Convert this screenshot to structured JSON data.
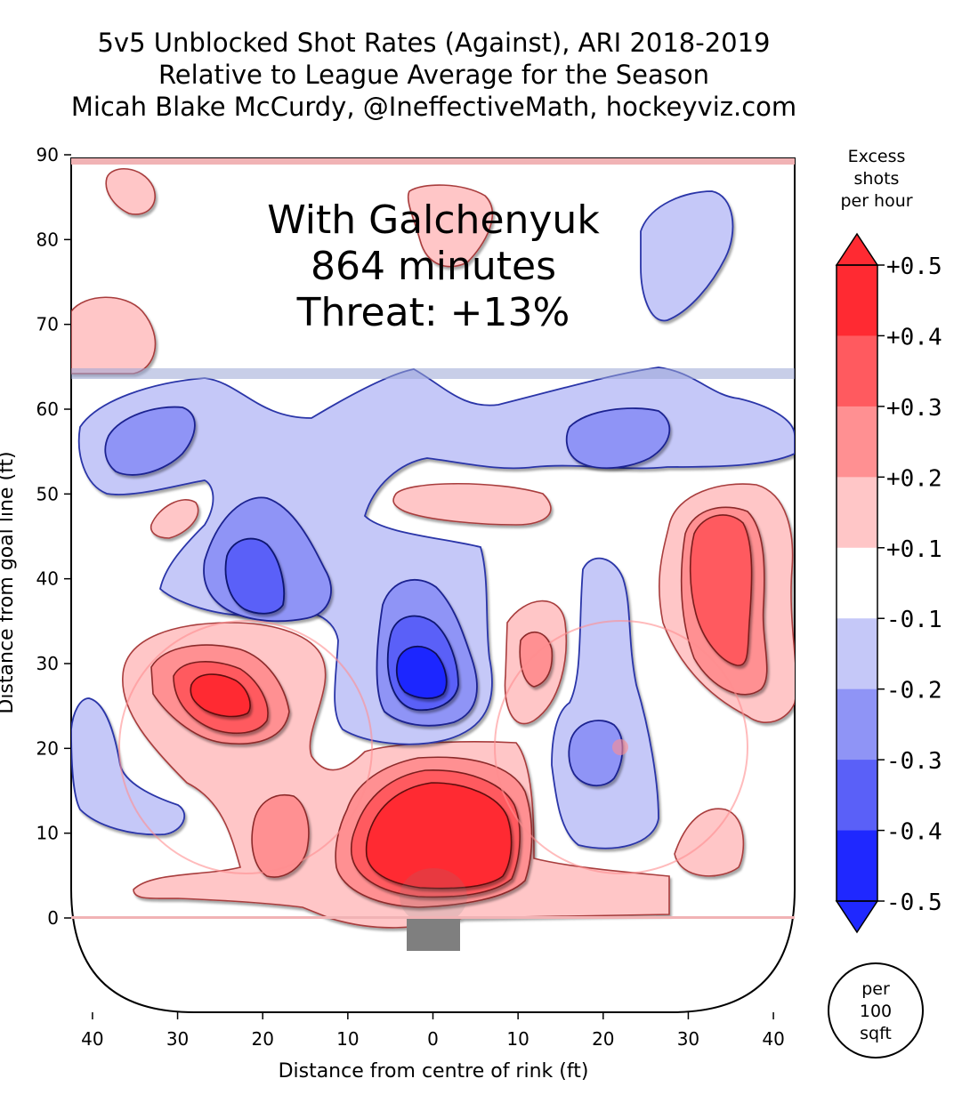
{
  "title": {
    "line1": "5v5 Unblocked Shot Rates (Against), ARI 2018-2019",
    "line2": "Relative to League Average for the Season",
    "line3": "Micah Blake McCurdy, @IneffectiveMath, hockeyviz.com"
  },
  "annotation": {
    "line1": "With Galchenyuk",
    "line2": "864 minutes",
    "line3": "Threat: +13%"
  },
  "axes": {
    "xlabel": "Distance from centre of rink (ft)",
    "ylabel": "Distance from goal line (ft)",
    "xticks": [
      40,
      30,
      20,
      10,
      0,
      10,
      20,
      30,
      40
    ],
    "xtick_values": [
      -40,
      -30,
      -20,
      -10,
      0,
      10,
      20,
      30,
      40
    ],
    "yticks": [
      0,
      10,
      20,
      30,
      40,
      50,
      60,
      70,
      80,
      90
    ]
  },
  "colorbar": {
    "title_lines": [
      "Excess",
      "shots",
      "per hour"
    ],
    "tick_labels": [
      "+0.5",
      "+0.4",
      "+0.3",
      "+0.2",
      "+0.1",
      "-0.1",
      "-0.2",
      "-0.3",
      "-0.4",
      "-0.5"
    ],
    "levels": [
      0.5,
      0.4,
      0.3,
      0.2,
      0.1,
      -0.1,
      -0.2,
      -0.3,
      -0.4,
      -0.5
    ],
    "colors": [
      "#ff2a32",
      "#ff5a5f",
      "#ff9092",
      "#ffc6c7",
      "#ffffff",
      "#c5c8f8",
      "#8f94f6",
      "#5a60f8",
      "#1f28ff"
    ]
  },
  "badge": {
    "lines": [
      "per",
      "100",
      "sqft"
    ]
  },
  "colors": {
    "red_1": "#ffc6c7",
    "red_2": "#ff9092",
    "red_3": "#ff5a5f",
    "red_4": "#ff2a32",
    "blue_1": "#c5c8f8",
    "blue_2": "#8f94f6",
    "blue_3": "#5a60f8",
    "blue_4": "#1f28ff",
    "goal": "#7f7f7f"
  },
  "chart_data": {
    "type": "heatmap",
    "x_range": [
      -42.5,
      42.5
    ],
    "y_range": [
      -11,
      90
    ],
    "regions": [
      {
        "sign": "+",
        "level": 4,
        "x": -1,
        "y": 11,
        "rx": 10,
        "ry": 6
      },
      {
        "sign": "+",
        "level": 2,
        "x": 34,
        "y": 41,
        "rx": 5,
        "ry": 9
      },
      {
        "sign": "+",
        "level": 3,
        "x": -26,
        "y": 27,
        "rx": 5,
        "ry": 4
      },
      {
        "sign": "-",
        "level": 4,
        "x": -1.5,
        "y": 29,
        "rx": 3,
        "ry": 4
      },
      {
        "sign": "-",
        "level": 3,
        "x": -21,
        "y": 40,
        "rx": 5,
        "ry": 5
      },
      {
        "sign": "-",
        "level": 2,
        "x": -36,
        "y": 56,
        "rx": 6,
        "ry": 4
      },
      {
        "sign": "-",
        "level": 2,
        "x": 22,
        "y": 56,
        "rx": 7,
        "ry": 4
      },
      {
        "sign": "-",
        "level": 2,
        "x": 18.5,
        "y": 20,
        "rx": 3,
        "ry": 4
      },
      {
        "sign": "+",
        "level": 2,
        "x": 12.5,
        "y": 31,
        "rx": 2,
        "ry": 3
      },
      {
        "sign": "+",
        "level": 2,
        "x": -16.5,
        "y": 12,
        "rx": 3,
        "ry": 5
      }
    ]
  }
}
